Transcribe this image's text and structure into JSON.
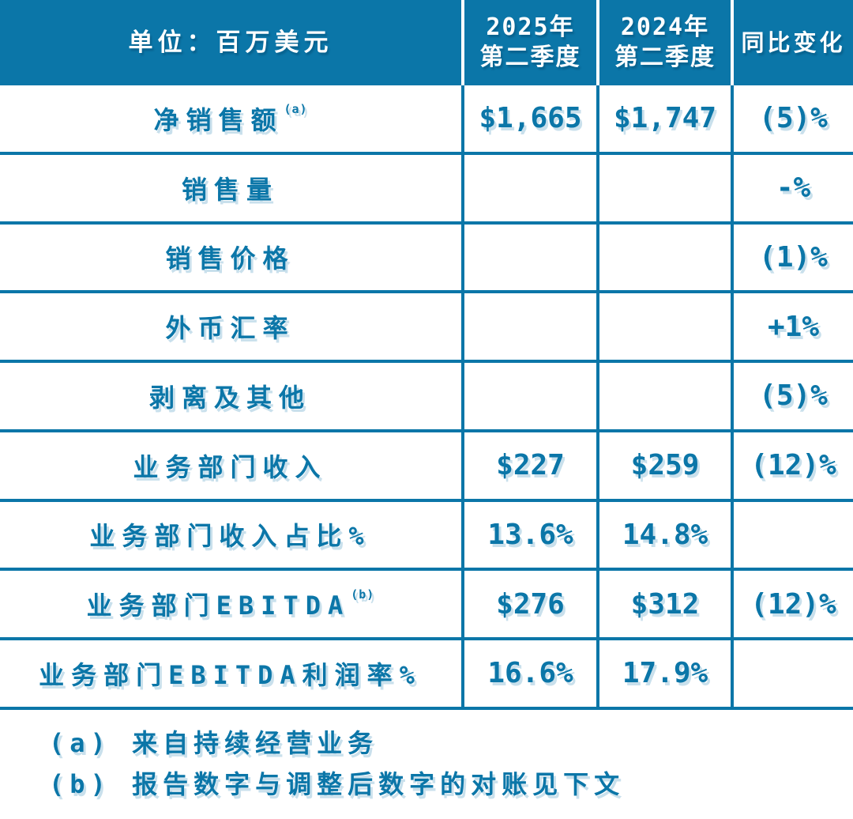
{
  "colors": {
    "accent_blue": "#0B76A8",
    "header_text": "#FFFFFF",
    "shadow_blue": "#C9E0EC",
    "background": "#FFFFFF"
  },
  "table": {
    "header": {
      "unit": "单位：百万美元",
      "col_2025_line1": "2025年",
      "col_2025_line2": "第二季度",
      "col_2024_line1": "2024年",
      "col_2024_line2": "第二季度",
      "yoy": "同比变化"
    },
    "rows": [
      {
        "label": "净销售额",
        "sup": "(a)",
        "v2025": "$1,665",
        "v2024": "$1,747",
        "yoy": "(5)%"
      },
      {
        "label": "销售量",
        "sup": "",
        "v2025": "",
        "v2024": "",
        "yoy": "-%"
      },
      {
        "label": "销售价格",
        "sup": "",
        "v2025": "",
        "v2024": "",
        "yoy": "(1)%"
      },
      {
        "label": "外币汇率",
        "sup": "",
        "v2025": "",
        "v2024": "",
        "yoy": "+1%"
      },
      {
        "label": "剥离及其他",
        "sup": "",
        "v2025": "",
        "v2024": "",
        "yoy": "(5)%"
      },
      {
        "label": "业务部门收入",
        "sup": "",
        "v2025": "$227",
        "v2024": "$259",
        "yoy": "(12)%"
      },
      {
        "label": "业务部门收入占比%",
        "sup": "",
        "v2025": "13.6%",
        "v2024": "14.8%",
        "yoy": ""
      },
      {
        "label": "业务部门EBITDA",
        "sup": "(b)",
        "v2025": "$276",
        "v2024": "$312",
        "yoy": "(12)%"
      },
      {
        "label": "业务部门EBITDA利润率%",
        "sup": "",
        "v2025": "16.6%",
        "v2024": "17.9%",
        "yoy": ""
      }
    ]
  },
  "footnotes": [
    "(a) 来自持续经营业务",
    "(b) 报告数字与调整后数字的对账见下文"
  ]
}
